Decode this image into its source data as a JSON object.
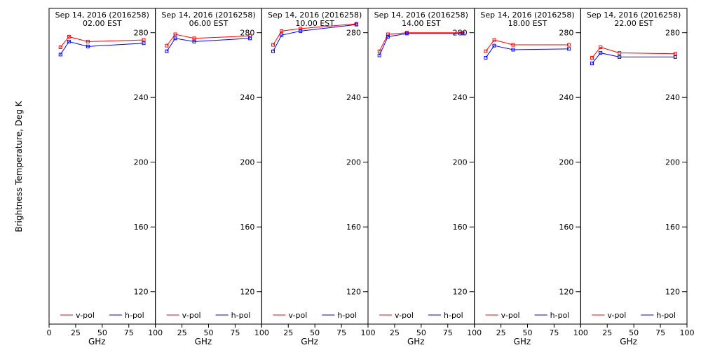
{
  "chart_data": [
    {
      "type": "line",
      "title": "Sep 14, 2016 (2016258)",
      "subtitle": "02.00 EST",
      "xlabel": "GHz",
      "ylabel": "Brightness Temperature, Deg K",
      "xlim": [
        0,
        100
      ],
      "ylim": [
        100,
        295
      ],
      "x_ticks": [
        0,
        25,
        50,
        75,
        100
      ],
      "y_ticks": [
        120,
        160,
        200,
        240,
        280
      ],
      "grid": false,
      "legend_position": "bottom",
      "x": [
        10.7,
        18.7,
        36.5,
        89.0
      ],
      "series": [
        {
          "name": "v-pol",
          "color": "#ff0000",
          "values": [
            271,
            277.5,
            274.5,
            275.5
          ]
        },
        {
          "name": "h-pol",
          "color": "#0000ff",
          "values": [
            266.5,
            274.5,
            271.5,
            273.5
          ]
        }
      ]
    },
    {
      "type": "line",
      "title": "Sep 14, 2016 (2016258)",
      "subtitle": "06.00 EST",
      "xlabel": "GHz",
      "ylabel": "",
      "xlim": [
        0,
        100
      ],
      "ylim": [
        100,
        295
      ],
      "x_ticks": [
        0,
        25,
        50,
        75,
        100
      ],
      "y_ticks": [
        120,
        160,
        200,
        240,
        280
      ],
      "grid": false,
      "legend_position": "bottom",
      "x": [
        10.7,
        18.7,
        36.5,
        89.0
      ],
      "series": [
        {
          "name": "v-pol",
          "color": "#ff0000",
          "values": [
            272,
            279,
            276.5,
            278
          ]
        },
        {
          "name": "h-pol",
          "color": "#0000ff",
          "values": [
            268.5,
            276.5,
            274.5,
            276.5
          ]
        }
      ]
    },
    {
      "type": "line",
      "title": "Sep 14, 2016 (2016258)",
      "subtitle": "10.00 EST",
      "xlabel": "GHz",
      "ylabel": "",
      "xlim": [
        0,
        100
      ],
      "ylim": [
        100,
        295
      ],
      "x_ticks": [
        0,
        25,
        50,
        75,
        100
      ],
      "y_ticks": [
        120,
        160,
        200,
        240,
        280
      ],
      "grid": false,
      "legend_position": "bottom",
      "x": [
        10.7,
        18.7,
        36.5,
        89.0
      ],
      "series": [
        {
          "name": "v-pol",
          "color": "#ff0000",
          "values": [
            272.5,
            281,
            282.5,
            285.5
          ]
        },
        {
          "name": "h-pol",
          "color": "#0000ff",
          "values": [
            268.5,
            278.5,
            281,
            285
          ]
        }
      ]
    },
    {
      "type": "line",
      "title": "Sep 14, 2016 (2016258)",
      "subtitle": "14.00 EST",
      "xlabel": "GHz",
      "ylabel": "",
      "xlim": [
        0,
        100
      ],
      "ylim": [
        100,
        295
      ],
      "x_ticks": [
        0,
        25,
        50,
        75,
        100
      ],
      "y_ticks": [
        120,
        160,
        200,
        240,
        280
      ],
      "grid": false,
      "legend_position": "bottom",
      "x": [
        10.7,
        18.7,
        36.5,
        89.0
      ],
      "series": [
        {
          "name": "v-pol",
          "color": "#ff0000",
          "values": [
            268.5,
            279,
            280,
            280
          ]
        },
        {
          "name": "h-pol",
          "color": "#0000ff",
          "values": [
            266,
            277.5,
            279.5,
            279.5
          ]
        }
      ]
    },
    {
      "type": "line",
      "title": "Sep 14, 2016 (2016258)",
      "subtitle": "18.00 EST",
      "xlabel": "GHz",
      "ylabel": "",
      "xlim": [
        0,
        100
      ],
      "ylim": [
        100,
        295
      ],
      "x_ticks": [
        0,
        25,
        50,
        75,
        100
      ],
      "y_ticks": [
        120,
        160,
        200,
        240,
        280
      ],
      "grid": false,
      "legend_position": "bottom",
      "x": [
        10.7,
        18.7,
        36.5,
        89.0
      ],
      "series": [
        {
          "name": "v-pol",
          "color": "#ff0000",
          "values": [
            268.5,
            275.5,
            272.5,
            272.5
          ]
        },
        {
          "name": "h-pol",
          "color": "#0000ff",
          "values": [
            264.5,
            272,
            269.5,
            270
          ]
        }
      ]
    },
    {
      "type": "line",
      "title": "Sep 14, 2016 (2016258)",
      "subtitle": "22.00 EST",
      "xlabel": "GHz",
      "ylabel": "",
      "xlim": [
        0,
        100
      ],
      "ylim": [
        100,
        295
      ],
      "x_ticks": [
        0,
        25,
        50,
        75,
        100
      ],
      "y_ticks": [
        120,
        160,
        200,
        240,
        280
      ],
      "grid": false,
      "legend_position": "bottom",
      "x": [
        10.7,
        18.7,
        36.5,
        89.0
      ],
      "series": [
        {
          "name": "v-pol",
          "color": "#ff0000",
          "values": [
            264.5,
            271,
            267.5,
            267
          ]
        },
        {
          "name": "h-pol",
          "color": "#0000ff",
          "values": [
            261,
            267.5,
            265,
            265
          ]
        }
      ]
    }
  ]
}
